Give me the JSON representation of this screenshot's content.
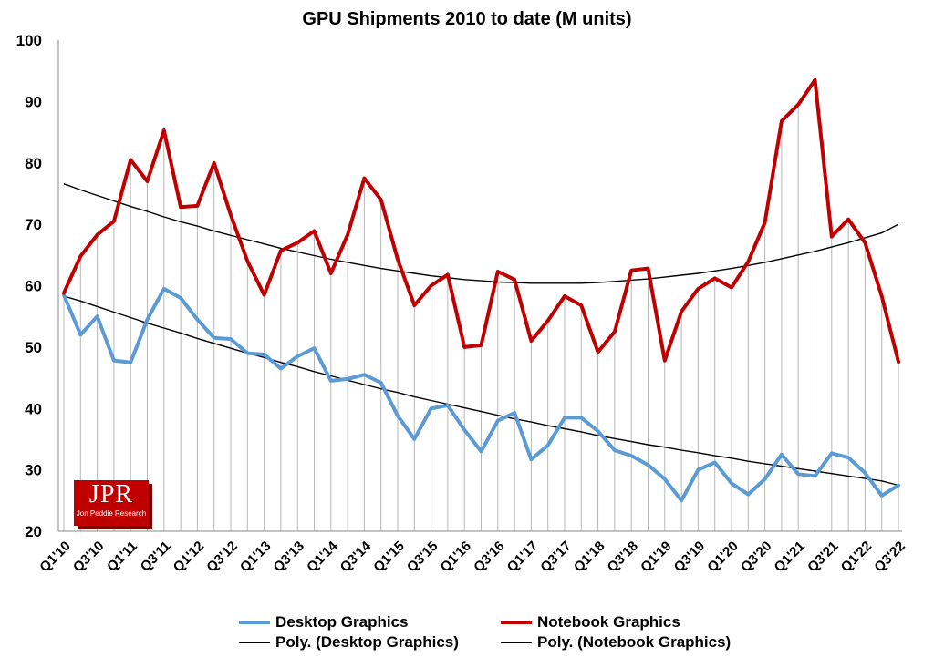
{
  "chart_data": {
    "type": "line",
    "title": "GPU Shipments 2010 to date (M units)",
    "xlabel": "",
    "ylabel": "",
    "ylim": [
      20,
      100
    ],
    "yticks": [
      20,
      30,
      40,
      50,
      60,
      70,
      80,
      90,
      100
    ],
    "categories": [
      "Q1'10",
      "Q2'10",
      "Q3'10",
      "Q4'10",
      "Q1'11",
      "Q2'11",
      "Q3'11",
      "Q4'11",
      "Q1'12",
      "Q2'12",
      "Q3'12",
      "Q4'12",
      "Q1'13",
      "Q2'13",
      "Q3'13",
      "Q4'13",
      "Q1'14",
      "Q2'14",
      "Q3'14",
      "Q4'14",
      "Q1'15",
      "Q2'15",
      "Q3'15",
      "Q4'15",
      "Q1'16",
      "Q2'16",
      "Q3'16",
      "Q4'16",
      "Q1'17",
      "Q2'17",
      "Q3'17",
      "Q4'17",
      "Q1'18",
      "Q2'18",
      "Q3'18",
      "Q4'18",
      "Q1'19",
      "Q2'19",
      "Q3'19",
      "Q4'19",
      "Q1'20",
      "Q2'20",
      "Q3'20",
      "Q4'20",
      "Q1'21",
      "Q2'21",
      "Q3'21",
      "Q4'21",
      "Q1'22",
      "Q2'22",
      "Q3'22"
    ],
    "tick_labels": [
      "Q1'10",
      "Q3'10",
      "Q1'11",
      "Q3'11",
      "Q1'12",
      "Q3'12",
      "Q1'13",
      "Q3'13",
      "Q1'14",
      "Q3'14",
      "Q1'15",
      "Q3'15",
      "Q1'16",
      "Q3'16",
      "Q1'17",
      "Q3'17",
      "Q1'18",
      "Q3'18",
      "Q1'19",
      "Q3'19",
      "Q1'20",
      "Q3'20",
      "Q1'21",
      "Q3'21",
      "Q1'22",
      "Q3'22"
    ],
    "series": [
      {
        "name": "Desktop Graphics",
        "color": "#5b9bd5",
        "values": [
          58.5,
          52,
          55,
          47.8,
          47.5,
          54.5,
          59.5,
          58,
          54.5,
          51.5,
          51.3,
          49,
          48.8,
          46.5,
          48.5,
          49.8,
          44.5,
          44.8,
          45.5,
          44.2,
          38.8,
          35,
          40,
          40.5,
          36.5,
          33,
          38,
          39.3,
          31.7,
          34,
          38.5,
          38.5,
          36.3,
          33.2,
          32.3,
          30.8,
          28.5,
          25,
          30,
          31.2,
          27.8,
          26,
          28.5,
          32.5,
          29.3,
          29,
          32.7,
          32,
          29.5,
          25.8,
          27.5
        ]
      },
      {
        "name": "Notebook Graphics",
        "color": "#c00000",
        "values": [
          58.8,
          64.8,
          68.3,
          70.5,
          80.5,
          77,
          85.3,
          72.8,
          73,
          80,
          71.5,
          64,
          58.5,
          65.7,
          67,
          68.9,
          62,
          68.3,
          77.5,
          74,
          64.3,
          56.8,
          60,
          61.8,
          50,
          50.3,
          62.3,
          61,
          51,
          54.3,
          58.3,
          56.8,
          49.2,
          52.5,
          62.5,
          62.8,
          47.8,
          55.8,
          59.5,
          61.2,
          59.7,
          63.9,
          70.3,
          86.8,
          89.5,
          93.5,
          68,
          70.8,
          67,
          58.3,
          47.6
        ]
      }
    ],
    "trendlines": [
      {
        "name": "Poly. (Desktop Graphics)",
        "color": "#000000",
        "values": [
          58.3,
          57.5,
          56.6,
          55.7,
          54.8,
          53.9,
          53.1,
          52.3,
          51.4,
          50.6,
          49.8,
          49,
          48.3,
          47.5,
          46.8,
          46,
          45.3,
          44.6,
          43.9,
          43.2,
          42.6,
          41.9,
          41.3,
          40.7,
          40.1,
          39.5,
          38.9,
          38.3,
          37.8,
          37.2,
          36.7,
          36.2,
          35.6,
          35.1,
          34.6,
          34.1,
          33.7,
          33.2,
          32.8,
          32.3,
          31.9,
          31.4,
          31,
          30.6,
          30.2,
          29.8,
          29.4,
          29,
          28.6,
          28.2,
          27.5
        ]
      },
      {
        "name": "Poly. (Notebook Graphics)",
        "color": "#000000",
        "values": [
          76.6,
          75.6,
          74.7,
          73.8,
          72.9,
          72.1,
          71.2,
          70.4,
          69.7,
          68.9,
          68.2,
          67.5,
          66.8,
          66.1,
          65.5,
          64.9,
          64.3,
          63.8,
          63.3,
          62.8,
          62.4,
          62,
          61.6,
          61.3,
          61,
          60.8,
          60.6,
          60.5,
          60.4,
          60.4,
          60.4,
          60.4,
          60.5,
          60.7,
          60.9,
          61.1,
          61.4,
          61.7,
          62,
          62.4,
          62.8,
          63.3,
          63.8,
          64.4,
          65,
          65.6,
          66.3,
          67,
          67.8,
          68.6,
          70
        ]
      }
    ],
    "grid": "vertical drop lines",
    "legend": [
      "Desktop Graphics",
      "Notebook Graphics",
      "Poly. (Desktop Graphics)",
      "Poly. (Notebook Graphics)"
    ],
    "legend_position": "bottom"
  },
  "logo": {
    "main": "JPR",
    "sub": "Jon Peddie Research"
  }
}
